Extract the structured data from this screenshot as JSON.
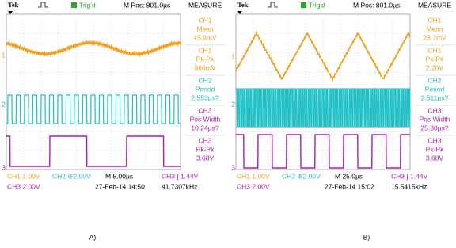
{
  "panels": [
    {
      "label": "A)",
      "header": {
        "brand": "Tek",
        "trigger": "Trig'd",
        "position": "M Pos: 801.0µs",
        "menu": "MEASURE"
      },
      "markers": [
        "1",
        "2",
        "3"
      ],
      "measurements": [
        {
          "channel": "CH1",
          "name": "Mean",
          "value": "45.9mV"
        },
        {
          "channel": "CH1",
          "name": "Pk-Pk",
          "value": "960mV"
        },
        {
          "channel": "CH2",
          "name": "Period",
          "value": "2.553µs?"
        },
        {
          "channel": "CH3",
          "name": "Pos Width",
          "value": "10.24µs?"
        },
        {
          "channel": "CH3",
          "name": "Pk-Pk",
          "value": "3.68V"
        }
      ],
      "footer": {
        "ch1": "CH1  1.00V",
        "ch2": "CH2 ⊕2.00V",
        "timebase": "M 5.00µs",
        "trigger": "CH3 ∫ 1.44V",
        "ch3": "CH3  2.00V",
        "date": "27-Feb-14 14:50",
        "frequency": "41.7307kHz"
      }
    },
    {
      "label": "B)",
      "header": {
        "brand": "Tek",
        "trigger": "Trig'd",
        "position": "M Pos: 801.0µs",
        "menu": "MEASURE"
      },
      "markers": [
        "1",
        "2",
        "3"
      ],
      "measurements": [
        {
          "channel": "CH1",
          "name": "Mean",
          "value": "23.7mV"
        },
        {
          "channel": "CH1",
          "name": "Pk-Pk",
          "value": "2.20V"
        },
        {
          "channel": "CH2",
          "name": "Period",
          "value": "2.511µs?"
        },
        {
          "channel": "CH3",
          "name": "Pos Width",
          "value": "25.80µs?"
        },
        {
          "channel": "CH3",
          "name": "Pk-Pk",
          "value": "3.68V"
        }
      ],
      "footer": {
        "ch1": "CH1  1.00V",
        "ch2": "CH2 ⊕2.00V",
        "timebase": "M 25.0µs",
        "trigger": "CH3 ∫ 1.44V",
        "ch3": "CH3  2.00V",
        "date": "27-Feb-14 15:02",
        "frequency": "15.5415kHz"
      }
    }
  ]
}
